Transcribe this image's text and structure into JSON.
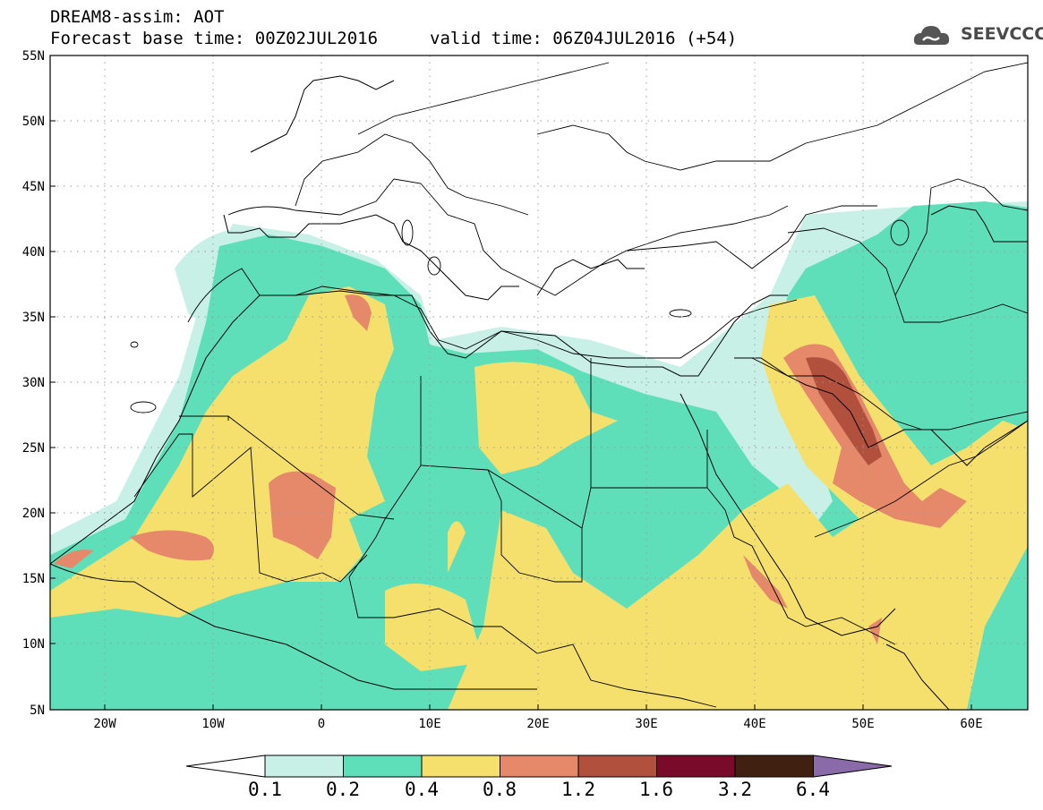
{
  "header": {
    "model_line": "DREAM8-assim: AOT",
    "base_time_label": "Forecast base time: 00Z02JUL2016",
    "valid_time_label": "valid time: 06Z04JUL2016 (+54)"
  },
  "logo": {
    "text": "SEEVCCC",
    "icon": "cloud-icon",
    "color": "#555555"
  },
  "map": {
    "lat_labels": [
      "55N",
      "50N",
      "45N",
      "40N",
      "35N",
      "30N",
      "25N",
      "20N",
      "15N",
      "10N",
      "5N"
    ],
    "lon_labels": [
      "20W",
      "10W",
      "0",
      "10E",
      "20E",
      "30E",
      "40E",
      "50E",
      "60E"
    ]
  },
  "colorbar": {
    "labels": [
      "0.1",
      "0.2",
      "0.4",
      "0.8",
      "1.2",
      "1.6",
      "3.2",
      "6.4"
    ],
    "colors": [
      "#ffffff",
      "#c8f0e6",
      "#5fdfb9",
      "#f5e06e",
      "#e6896a",
      "#b0503d",
      "#7a0a2a",
      "#402010",
      "#8a6aa8"
    ]
  }
}
